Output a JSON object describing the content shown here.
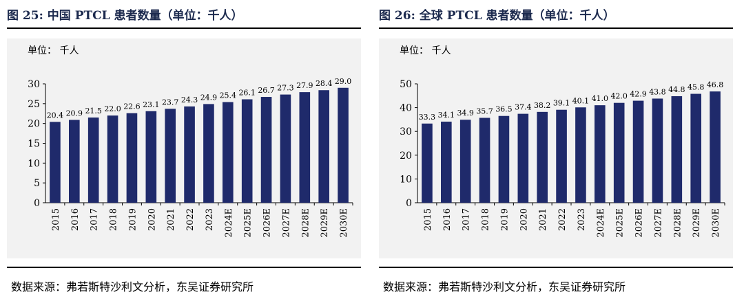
{
  "panels": [
    {
      "title": "图 25:  中国 PTCL 患者数量（单位：千人）",
      "unit": "单位：  千人",
      "source": "数据来源：弗若斯特沙利文分析，东吴证券研究所"
    },
    {
      "title": "图 26:  全球 PTCL 患者数量（单位：千人）",
      "unit": "单位：  千人",
      "source": "数据来源：弗若斯特沙利文分析，东吴证券研究所"
    }
  ],
  "colors": {
    "bar": "#1f2a6b",
    "title": "#1c2a4e"
  },
  "chart_data": [
    {
      "type": "bar",
      "title": "图 25:  中国 PTCL 患者数量（单位：千人）",
      "categories": [
        "2015",
        "2016",
        "2017",
        "2018",
        "2019",
        "2020",
        "2021",
        "2022",
        "2023",
        "2024E",
        "2025E",
        "2026E",
        "2027E",
        "2028E",
        "2029E",
        "2030E"
      ],
      "values": [
        20.4,
        20.9,
        21.5,
        22.0,
        22.6,
        23.1,
        23.7,
        24.3,
        24.9,
        25.4,
        26.1,
        26.7,
        27.3,
        27.9,
        28.4,
        29.0
      ],
      "labels": [
        "20.4",
        "20.9",
        "21.5",
        "22.0",
        "22.6",
        "23.1",
        "23.7",
        "24.3",
        "24.9",
        "25.4",
        "26.1",
        "26.7",
        "27.3",
        "27.9",
        "28.4",
        "29.0"
      ],
      "ylim": [
        0,
        30
      ],
      "yticks": [
        0,
        5,
        10,
        15,
        20,
        25,
        30
      ],
      "xlabel": "",
      "ylabel": "",
      "grid": false,
      "legend": "none"
    },
    {
      "type": "bar",
      "title": "图 26:  全球 PTCL 患者数量（单位：千人）",
      "categories": [
        "2015",
        "2016",
        "2017",
        "2018",
        "2019",
        "2020",
        "2021",
        "2022",
        "2023",
        "2024E",
        "2025E",
        "2026E",
        "2027E",
        "2028E",
        "2029E",
        "2030E"
      ],
      "values": [
        33.3,
        34.1,
        34.9,
        35.7,
        36.5,
        37.4,
        38.2,
        39.1,
        40.1,
        41.0,
        42.0,
        42.9,
        43.8,
        44.8,
        45.8,
        46.8
      ],
      "labels": [
        "33.3",
        "34.1",
        "34.9",
        "35.7",
        "36.5",
        "37.4",
        "38.2",
        "39.1",
        "40.1",
        "41.0",
        "42.0",
        "42.9",
        "43.8",
        "44.8",
        "45.8",
        "46.8"
      ],
      "ylim": [
        0,
        50
      ],
      "yticks": [
        0,
        10,
        20,
        30,
        40,
        50
      ],
      "xlabel": "",
      "ylabel": "",
      "grid": false,
      "legend": "none"
    }
  ]
}
